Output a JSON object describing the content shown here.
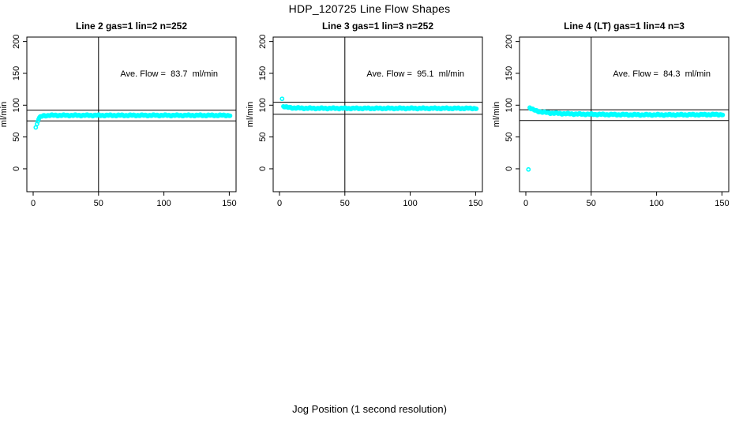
{
  "figure": {
    "title": "HDP_120725  Line Flow Shapes",
    "xlabel": "Jog Position (1 second resolution)",
    "background_color": "#ffffff",
    "point_color": "#00ffff",
    "line_color": "#000000"
  },
  "chart_data": [
    {
      "type": "scatter",
      "title": "Line 2 gas=1 lin=2 n=252",
      "ylabel": "ml/min",
      "annotation": "Ave. Flow =  83.7  ml/min",
      "ave_flow_ml_min": 83.7,
      "xticks": [
        0,
        50,
        100,
        150
      ],
      "yticks": [
        0,
        50,
        100,
        150,
        200
      ],
      "xlim": [
        -5,
        155
      ],
      "ylim": [
        -36,
        207
      ],
      "vline_x": 50,
      "hlines": [
        92.1,
        75.3
      ],
      "outlier_points": [
        [
          2,
          65
        ]
      ],
      "profile_keypoints": [
        [
          3,
          71
        ],
        [
          3.5,
          75
        ],
        [
          4,
          78
        ],
        [
          5,
          80.5
        ],
        [
          6,
          82
        ],
        [
          8,
          83.3
        ],
        [
          12,
          84
        ],
        [
          151,
          84
        ]
      ],
      "annotation_pos": [
        104,
        150
      ],
      "grid": false
    },
    {
      "type": "scatter",
      "title": "Line 3 gas=1 lin=3 n=252",
      "ylabel": "ml/min",
      "annotation": "Ave. Flow =  95.1  ml/min",
      "ave_flow_ml_min": 95.1,
      "xticks": [
        0,
        50,
        100,
        150
      ],
      "yticks": [
        0,
        50,
        100,
        150,
        200
      ],
      "xlim": [
        -5,
        155
      ],
      "ylim": [
        -36,
        207
      ],
      "vline_x": 50,
      "hlines": [
        104.6,
        85.6
      ],
      "outlier_points": [
        [
          2,
          110
        ]
      ],
      "profile_keypoints": [
        [
          3,
          98.5
        ],
        [
          4,
          97.5
        ],
        [
          6,
          96.5
        ],
        [
          10,
          95.8
        ],
        [
          18,
          95.2
        ],
        [
          30,
          95
        ],
        [
          151,
          95
        ]
      ],
      "annotation_pos": [
        104,
        150
      ],
      "grid": false
    },
    {
      "type": "scatter",
      "title": "Line 4 (LT) gas=1 lin=4 n=3",
      "ylabel": "ml/min",
      "annotation": "Ave. Flow =  84.3  ml/min",
      "ave_flow_ml_min": 84.3,
      "xticks": [
        0,
        50,
        100,
        150
      ],
      "yticks": [
        0,
        50,
        100,
        150,
        200
      ],
      "xlim": [
        -5,
        155
      ],
      "ylim": [
        -36,
        207
      ],
      "vline_x": 50,
      "hlines": [
        92.8,
        75.9
      ],
      "outlier_points": [
        [
          2,
          -1
        ]
      ],
      "profile_keypoints": [
        [
          3,
          96.5
        ],
        [
          4,
          94.5
        ],
        [
          6,
          92.5
        ],
        [
          9,
          90.5
        ],
        [
          13,
          89
        ],
        [
          19,
          87.7
        ],
        [
          27,
          86.8
        ],
        [
          40,
          86
        ],
        [
          60,
          85.3
        ],
        [
          85,
          84.9
        ],
        [
          110,
          84.8
        ],
        [
          135,
          85.1
        ],
        [
          151,
          85.3
        ]
      ],
      "annotation_pos": [
        104,
        150
      ],
      "grid": false
    }
  ]
}
